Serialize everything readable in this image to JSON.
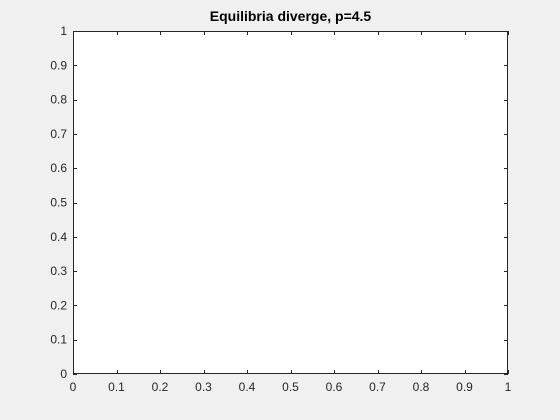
{
  "chart_data": {
    "type": "line",
    "title": "Equilibria diverge, p=4.5",
    "xlabel": "",
    "ylabel": "",
    "xlim": [
      0,
      1
    ],
    "ylim": [
      0,
      1
    ],
    "xticks": [
      0,
      0.1,
      0.2,
      0.3,
      0.4,
      0.5,
      0.6,
      0.7,
      0.8,
      0.9,
      1
    ],
    "yticks": [
      0,
      0.1,
      0.2,
      0.3,
      0.4,
      0.5,
      0.6,
      0.7,
      0.8,
      0.9,
      1
    ],
    "xtick_labels": [
      "0",
      "0.1",
      "0.2",
      "0.3",
      "0.4",
      "0.5",
      "0.6",
      "0.7",
      "0.8",
      "0.9",
      "1"
    ],
    "ytick_labels": [
      "0",
      "0.1",
      "0.2",
      "0.3",
      "0.4",
      "0.5",
      "0.6",
      "0.7",
      "0.8",
      "0.9",
      "1"
    ],
    "grid": false,
    "series": []
  },
  "colors": {
    "figure_background": "#f0f0f0",
    "axes_background": "#ffffff",
    "axis_color": "#262626"
  }
}
